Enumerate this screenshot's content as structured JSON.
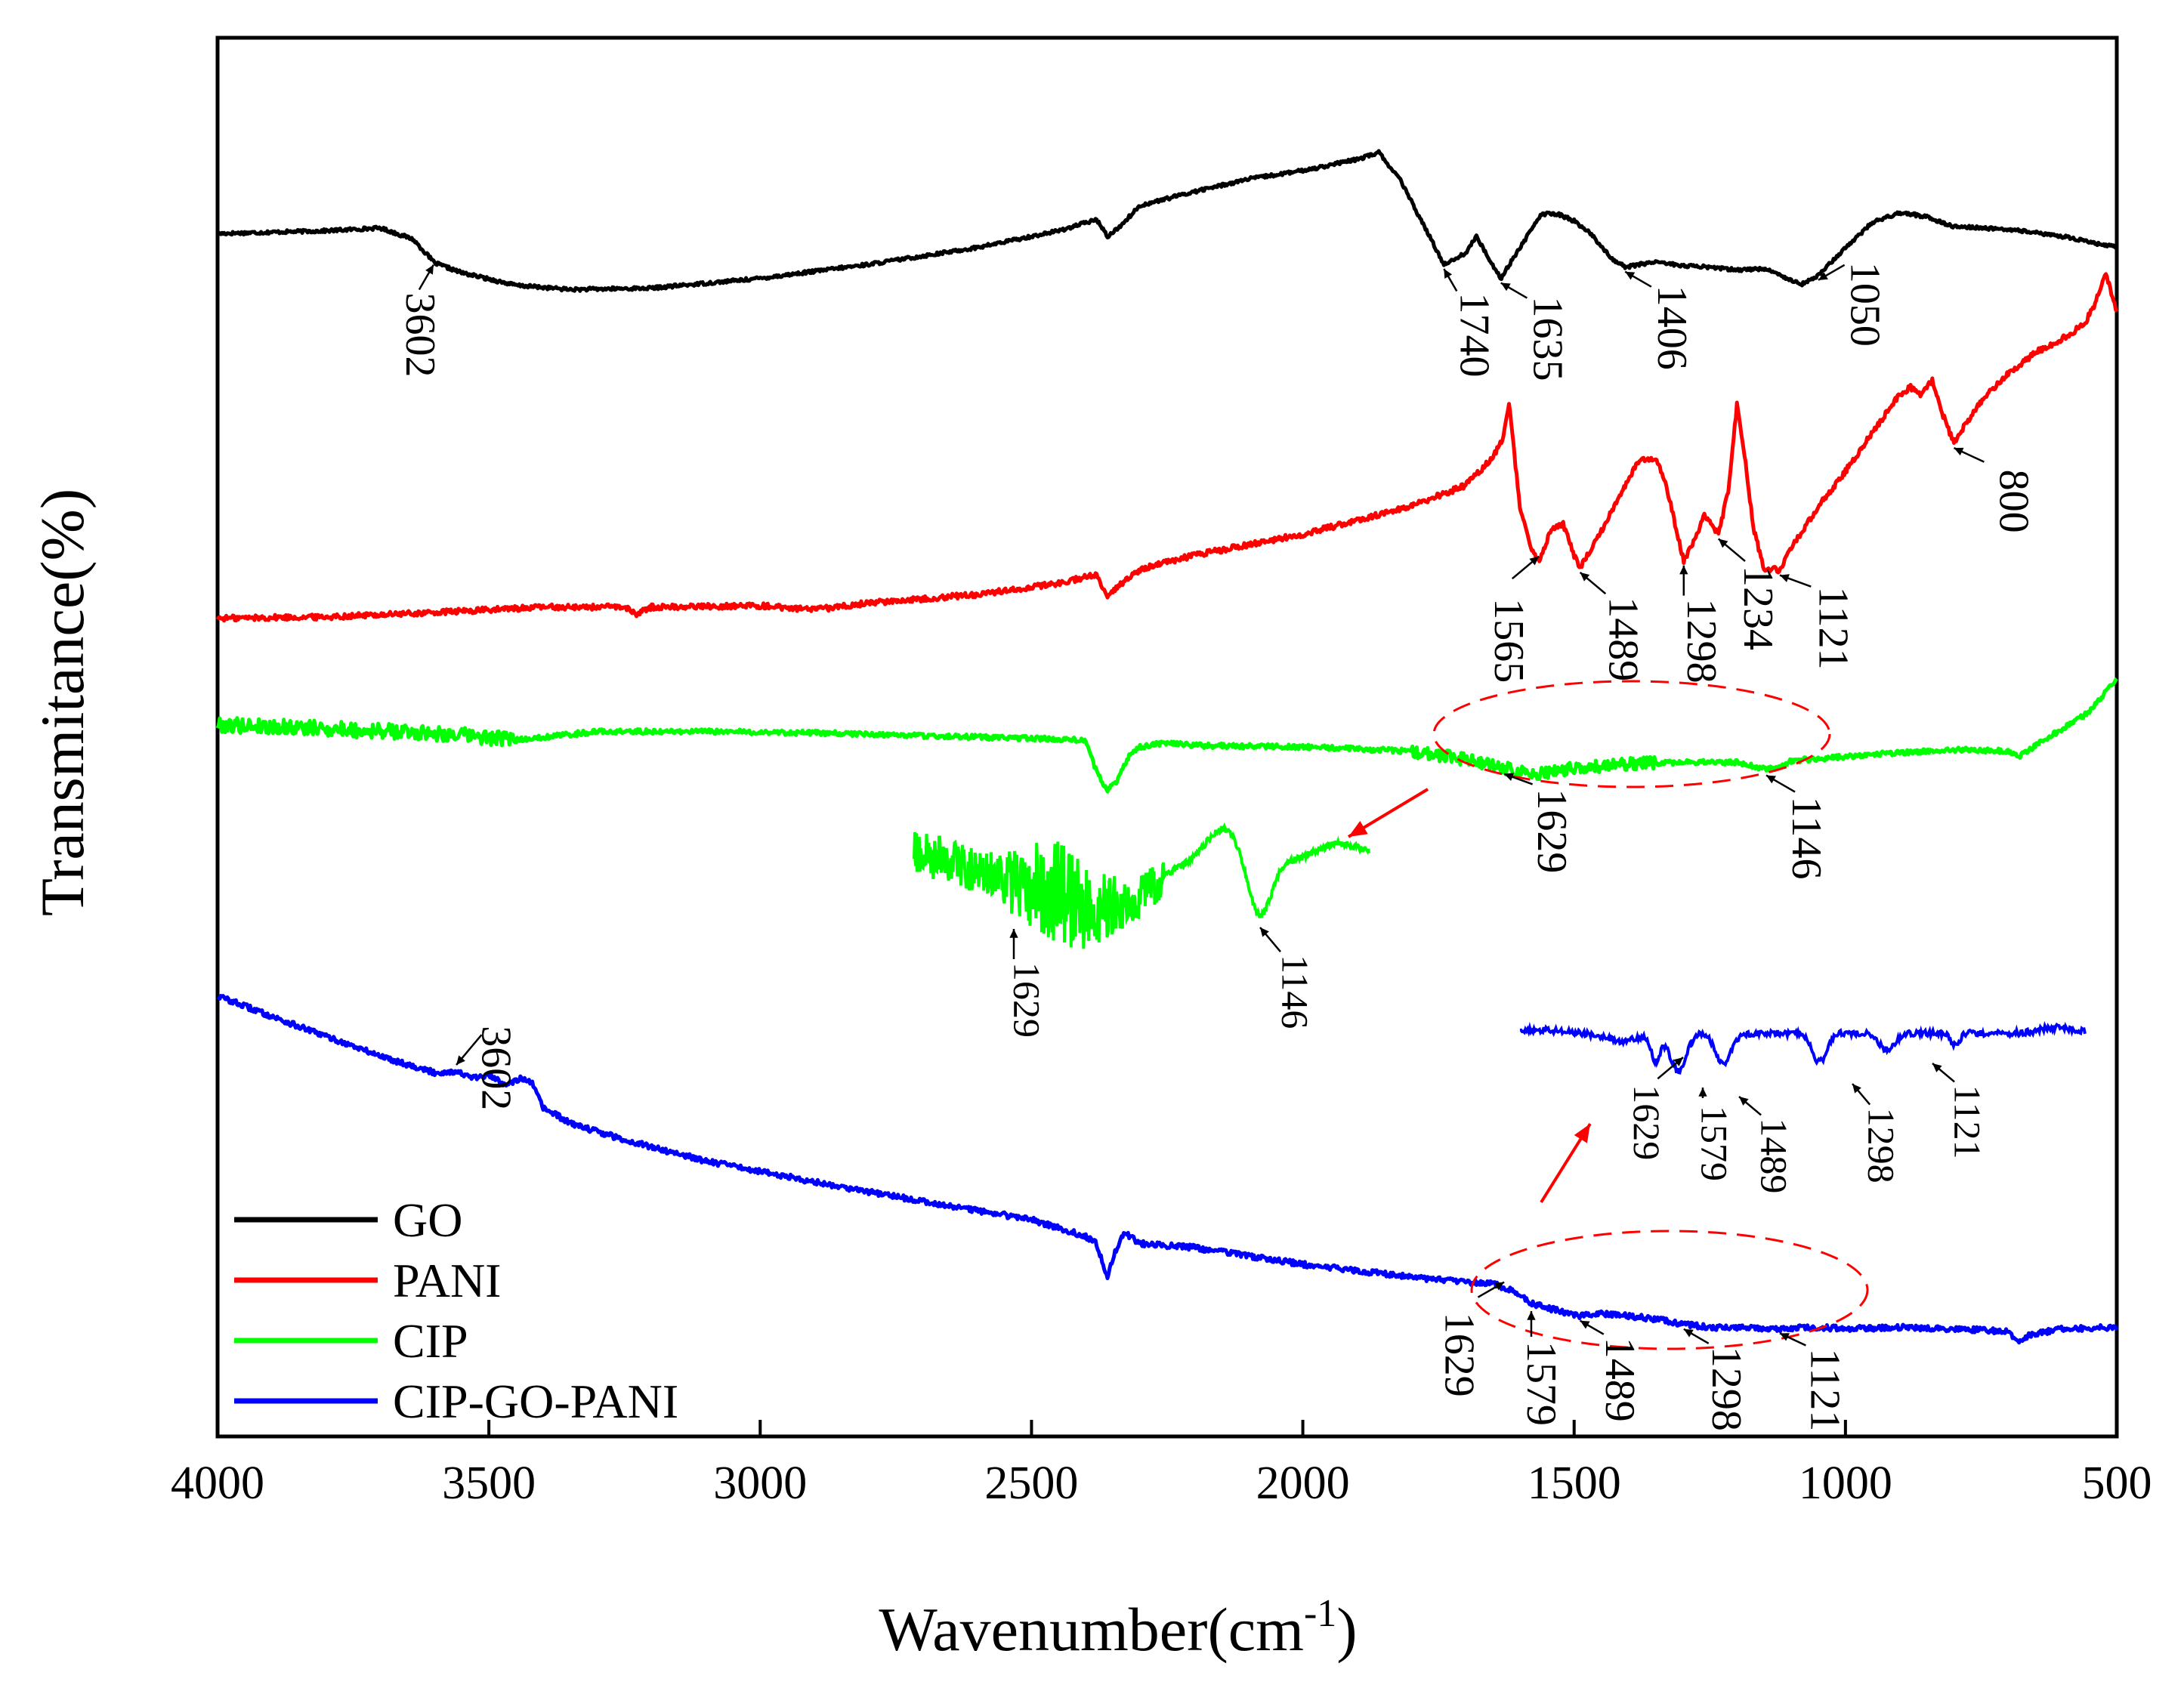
{
  "chart_data": {
    "type": "line",
    "title": "",
    "xlabel": "Wavenumber(cm",
    "xlabel_sup": "-1",
    "xlabel_close": ")",
    "ylabel": "Transmitance(%)",
    "xlim": [
      4000,
      500
    ],
    "ylim": [
      0,
      100
    ],
    "x_ticks": [
      4000,
      3500,
      3000,
      2500,
      2000,
      1500,
      1000,
      500
    ],
    "x_tick_labels": [
      "4000",
      "3500",
      "3000",
      "2500",
      "2000",
      "1500",
      "1000",
      "500"
    ],
    "legend_position": "bottom-left",
    "series": [
      {
        "name": "GO",
        "color": "#000000",
        "x": [
          4000,
          3800,
          3700,
          3640,
          3600,
          3550,
          3450,
          3350,
          3200,
          3000,
          2800,
          2600,
          2450,
          2380,
          2360,
          2340,
          2300,
          2200,
          2100,
          2000,
          1900,
          1860,
          1820,
          1780,
          1740,
          1700,
          1680,
          1660,
          1635,
          1600,
          1560,
          1530,
          1500,
          1470,
          1430,
          1406,
          1350,
          1300,
          1250,
          1200,
          1150,
          1100,
          1080,
          1050,
          1000,
          950,
          900,
          850,
          800,
          700,
          600,
          500
        ],
        "y": [
          86,
          86.2,
          86.4,
          85.6,
          83.9,
          83.2,
          82.3,
          82,
          82.1,
          82.8,
          83.8,
          85,
          86.2,
          87,
          85.8,
          86.4,
          88,
          89,
          89.9,
          90.5,
          91.3,
          91.8,
          89.8,
          86.8,
          83.8,
          84.6,
          85.8,
          84.4,
          82.8,
          85,
          87.4,
          87.4,
          86.9,
          86,
          84.2,
          83.6,
          84,
          83.7,
          83.6,
          83.4,
          83.5,
          82.7,
          82.4,
          83,
          85,
          86.8,
          87.5,
          87.2,
          86.5,
          86.3,
          85.8,
          85
        ]
      },
      {
        "name": "PANI",
        "color": "#ff0000",
        "x": [
          4000,
          3800,
          3600,
          3400,
          3250,
          3230,
          3200,
          3000,
          2900,
          2800,
          2600,
          2450,
          2380,
          2360,
          2340,
          2300,
          2200,
          2000,
          1800,
          1700,
          1650,
          1630,
          1620,
          1600,
          1580,
          1565,
          1540,
          1520,
          1500,
          1489,
          1460,
          1420,
          1380,
          1350,
          1330,
          1310,
          1298,
          1280,
          1260,
          1234,
          1215,
          1200,
          1185,
          1170,
          1150,
          1130,
          1121,
          1100,
          1050,
          1000,
          950,
          900,
          880,
          860,
          840,
          820,
          800,
          780,
          750,
          700,
          650,
          600,
          560,
          540,
          520,
          500
        ],
        "y": [
          58.5,
          58.6,
          58.9,
          59.3,
          59.3,
          58.8,
          59.3,
          59.4,
          59.1,
          59.6,
          60.2,
          61,
          61.6,
          59.9,
          60.8,
          62,
          63,
          64.5,
          66.5,
          68,
          70,
          71.5,
          73.8,
          66.5,
          63.5,
          62.6,
          65,
          65.2,
          63,
          62.1,
          64,
          67,
          69.8,
          70,
          68,
          64.5,
          62.6,
          64,
          65.8,
          64.5,
          67.8,
          73.8,
          70,
          65,
          62,
          62,
          61.9,
          63.5,
          66.5,
          69,
          71.8,
          74.5,
          75,
          74.5,
          75.5,
          73,
          71,
          72.3,
          74,
          76,
          77.5,
          78.5,
          79.5,
          81,
          83.2,
          80.3
        ]
      },
      {
        "name": "CIP",
        "color": "#00ff00",
        "x": [
          4000,
          3800,
          3600,
          3450,
          3300,
          3100,
          2900,
          2700,
          2500,
          2400,
          2380,
          2360,
          2340,
          2320,
          2300,
          2250,
          2200,
          2000,
          1800,
          1700,
          1629,
          1580,
          1540,
          1500,
          1450,
          1400,
          1300,
          1200,
          1146,
          1120,
          1100,
          1000,
          900,
          800,
          700,
          680,
          650,
          600,
          550,
          500
        ],
        "y": [
          50.9,
          50.6,
          50.3,
          49.8,
          50.4,
          50.4,
          50.3,
          50.1,
          49.9,
          49.8,
          47.5,
          46.2,
          47,
          48.7,
          49.3,
          49.6,
          49.4,
          49.3,
          49,
          48.4,
          47.8,
          47.3,
          47.5,
          47.8,
          47.9,
          48.1,
          48.2,
          48.2,
          47.7,
          47.8,
          48.3,
          48.6,
          48.9,
          49.1,
          49,
          48.6,
          49.4,
          50.6,
          51.8,
          54.2
        ]
      },
      {
        "name": "CIP-GO-PANI",
        "color": "#0000ff",
        "x": [
          4000,
          3850,
          3700,
          3600,
          3560,
          3530,
          3500,
          3470,
          3440,
          3420,
          3400,
          3350,
          3250,
          3100,
          2900,
          2700,
          2500,
          2400,
          2380,
          2360,
          2350,
          2330,
          2300,
          2200,
          2000,
          1800,
          1700,
          1650,
          1629,
          1610,
          1590,
          1579,
          1540,
          1510,
          1489,
          1450,
          1400,
          1350,
          1298,
          1250,
          1200,
          1121,
          1050,
          1000,
          900,
          800,
          700,
          680,
          660,
          600,
          500
        ],
        "y": [
          31.5,
          29.3,
          27.2,
          26,
          26.1,
          25.6,
          25.8,
          25.2,
          25.6,
          25.2,
          23.5,
          22.4,
          21.2,
          19.7,
          18.2,
          16.8,
          15.5,
          14.3,
          13.8,
          11.2,
          12.8,
          14.6,
          13.8,
          13.5,
          12.3,
          11.4,
          11,
          11,
          10.6,
          10.4,
          9.8,
          9.5,
          9.1,
          8.8,
          8.6,
          8.8,
          8.6,
          8.4,
          8,
          7.8,
          7.8,
          7.7,
          7.8,
          7.7,
          7.8,
          7.7,
          7.5,
          6.7,
          7.3,
          7.7,
          7.8
        ]
      }
    ],
    "annotations": [
      {
        "series": "GO",
        "label": "3602",
        "x": 3602
      },
      {
        "series": "GO",
        "label": "1740",
        "x": 1740
      },
      {
        "series": "GO",
        "label": "1635",
        "x": 1635
      },
      {
        "series": "GO",
        "label": "1406",
        "x": 1406
      },
      {
        "series": "GO",
        "label": "1050",
        "x": 1050
      },
      {
        "series": "PANI",
        "label": "1565",
        "x": 1565
      },
      {
        "series": "PANI",
        "label": "1489",
        "x": 1489
      },
      {
        "series": "PANI",
        "label": "1298",
        "x": 1298
      },
      {
        "series": "PANI",
        "label": "1234",
        "x": 1234
      },
      {
        "series": "PANI",
        "label": "1121",
        "x": 1121
      },
      {
        "series": "PANI",
        "label": "800",
        "x": 800
      },
      {
        "series": "CIP",
        "label": "1629",
        "x": 1629
      },
      {
        "series": "CIP",
        "label": "1146",
        "x": 1146
      },
      {
        "series": "CIP-GO-PANI",
        "label": "3602",
        "x": 3602
      },
      {
        "series": "CIP-GO-PANI",
        "label": "1629",
        "x": 1629
      },
      {
        "series": "CIP-GO-PANI",
        "label": "1579",
        "x": 1579
      },
      {
        "series": "CIP-GO-PANI",
        "label": "1489",
        "x": 1489
      },
      {
        "series": "CIP-GO-PANI",
        "label": "1298",
        "x": 1298
      },
      {
        "series": "CIP-GO-PANI",
        "label": "1121",
        "x": 1121
      }
    ],
    "insets": [
      {
        "series": "CIP",
        "description": "magnified 1800–1000 cm-1 region",
        "labels": [
          "1629",
          "1146"
        ]
      },
      {
        "series": "CIP-GO-PANI",
        "description": "magnified 1800–1000 cm-1 region",
        "labels": [
          "1629",
          "1579",
          "1489",
          "1298",
          "1121"
        ]
      }
    ]
  }
}
